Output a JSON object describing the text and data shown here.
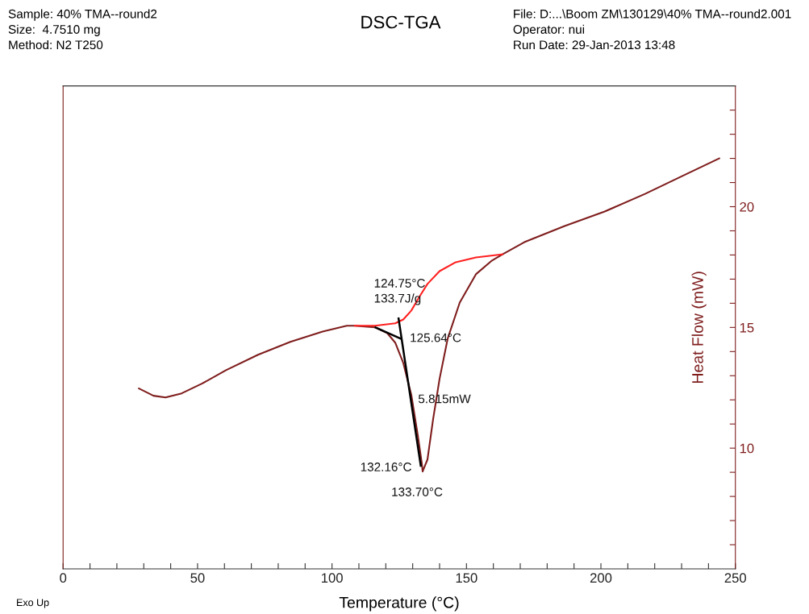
{
  "chart_data": {
    "type": "line",
    "title": "DSC-TGA",
    "xlabel": "Temperature (°C)",
    "ylabel": "Heat Flow (mW)",
    "xlim": [
      0,
      250
    ],
    "xticks": [
      0,
      {
        "value": 10,
        "label": null
      },
      {
        "value": 20,
        "label": null
      },
      {
        "value": 30,
        "label": null
      },
      {
        "value": 40,
        "label": null
      },
      50,
      {
        "value": 60,
        "label": null
      },
      {
        "value": 70,
        "label": null
      },
      {
        "value": 80,
        "label": null
      },
      {
        "value": 90,
        "label": null
      },
      100,
      {
        "value": 110,
        "label": null
      },
      {
        "value": 120,
        "label": null
      },
      {
        "value": 130,
        "label": null
      },
      {
        "value": 140,
        "label": null
      },
      150,
      {
        "value": 160,
        "label": null
      },
      {
        "value": 170,
        "label": null
      },
      {
        "value": 180,
        "label": null
      },
      {
        "value": 190,
        "label": null
      },
      200,
      {
        "value": 210,
        "label": null
      },
      {
        "value": 220,
        "label": null
      },
      {
        "value": 230,
        "label": null
      },
      {
        "value": 240,
        "label": null
      },
      250
    ],
    "ylim": [
      5,
      25
    ],
    "yticks": [
      {
        "value": 6,
        "label": null
      },
      {
        "value": 7,
        "label": null
      },
      {
        "value": 8,
        "label": null
      },
      {
        "value": 9,
        "label": null
      },
      10,
      {
        "value": 11,
        "label": null
      },
      {
        "value": 12,
        "label": null
      },
      {
        "value": 13,
        "label": null
      },
      {
        "value": 14,
        "label": null
      },
      15,
      {
        "value": 16,
        "label": null
      },
      {
        "value": 17,
        "label": null
      },
      {
        "value": 18,
        "label": null
      },
      {
        "value": 19,
        "label": null
      },
      20,
      {
        "value": 21,
        "label": null
      },
      {
        "value": 22,
        "label": null
      },
      {
        "value": 23,
        "label": null
      },
      {
        "value": 24,
        "label": null
      }
    ],
    "grid": false,
    "legend": false,
    "marker": "none",
    "line_style": "solid",
    "series": [
      {
        "color": "#7f1d1d",
        "x": [
          28.2,
          33.6,
          38.1,
          44.1,
          51.6,
          60.6,
          72.5,
          84.5,
          96.5,
          105.5,
          108.5,
          113.0,
          116.0,
          120.5,
          123.5,
          126.5,
          129.5,
          131.9,
          133.4,
          133.7,
          135.5,
          137.6,
          140.0,
          143.0,
          147.5,
          153.5,
          159.5,
          163.4,
          171.5,
          186.5,
          201.4,
          216.4,
          231.4,
          244.0
        ],
        "values": [
          12.47,
          12.17,
          12.1,
          12.27,
          12.67,
          13.23,
          13.87,
          14.4,
          14.83,
          15.07,
          15.07,
          15.03,
          15.0,
          14.77,
          14.37,
          13.53,
          12.2,
          10.53,
          9.37,
          9.03,
          9.53,
          11.2,
          12.87,
          14.53,
          16.03,
          17.2,
          17.77,
          18.03,
          18.53,
          19.2,
          19.8,
          20.53,
          21.33,
          22.0
        ]
      },
      {
        "color": "#ff2020",
        "x": [
          108.5,
          116.0,
          123.5,
          126.5,
          129.5,
          132.5,
          135.5,
          140.0,
          146.0,
          153.5,
          163.4
        ],
        "values": [
          15.07,
          15.07,
          15.17,
          15.33,
          15.7,
          16.27,
          16.8,
          17.33,
          17.7,
          17.9,
          18.03
        ]
      },
      {
        "color": "#000000",
        "x": [
          124.75,
          133.0
        ],
        "values": [
          15.37,
          9.27
        ]
      },
      {
        "color": "#000000",
        "x": [
          125.6,
          116.2
        ],
        "values": [
          14.53,
          15.0
        ]
      }
    ],
    "annotations": [
      {
        "text": "124.75°C\n133.7J/g",
        "x": 124.75,
        "y": 15.37
      },
      {
        "text": "125.64°C",
        "x": 125.6,
        "y": 14.53
      },
      {
        "text": "5.815mW",
        "x": 129.5,
        "y": 12.0
      },
      {
        "text": "132.16°C",
        "x": 132.16,
        "y": 9.27
      },
      {
        "text": "133.70°C",
        "x": 133.7,
        "y": 9.03
      },
      "Sample: 40% TMA--round2\nSize:  4.7510 mg\nMethod: N2 T250",
      "File: D:...\\Boom ZM\\130129\\40% TMA--round2.001\nOperator: nui\nRun Date: 29-Jan-2013 13:48",
      "Exo Up"
    ]
  }
}
